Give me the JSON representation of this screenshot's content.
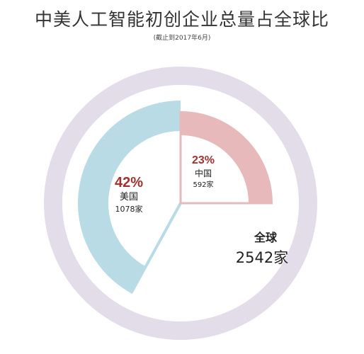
{
  "chart_data": {
    "type": "pie",
    "title": "中美人工智能初创企业总量占全球比",
    "subtitle": "(截止到2017年6月)",
    "total": {
      "label": "全球",
      "value": 2542,
      "unit": "家",
      "value_text": "2542家"
    },
    "series": [
      {
        "name": "中国",
        "percent": 23,
        "count": 592,
        "percent_text": "23%",
        "count_text": "592家"
      },
      {
        "name": "美国",
        "percent": 42,
        "count": 1078,
        "percent_text": "42%",
        "count_text": "1078家"
      }
    ],
    "colors": {
      "outer_ring": "#e3dce9",
      "china": "#e8b9bb",
      "china_text": "#a4312e",
      "usa": "#b9dbe5",
      "usa_text": "#a4312e",
      "background": "#ffffff"
    }
  }
}
